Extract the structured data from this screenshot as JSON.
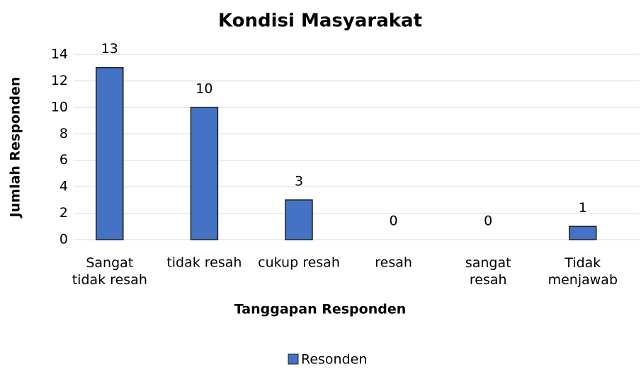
{
  "chart_data": {
    "type": "bar",
    "title": "Kondisi Masyarakat",
    "x_label": "Tanggapan Responden",
    "y_label": "Jumlah Responden",
    "categories": [
      "Sangat\ntidak resah",
      "tidak resah",
      "cukup resah",
      "resah",
      "sangat\nresah",
      "Tidak\nmenjawab"
    ],
    "series": [
      {
        "name": "Resonden",
        "color": "#4472c4",
        "values": [
          13,
          10,
          3,
          0,
          0,
          1
        ]
      }
    ],
    "ylim": [
      0,
      14
    ],
    "yticks": [
      0,
      2,
      4,
      6,
      8,
      10,
      12,
      14
    ],
    "grid": true,
    "legend": "bottom"
  }
}
